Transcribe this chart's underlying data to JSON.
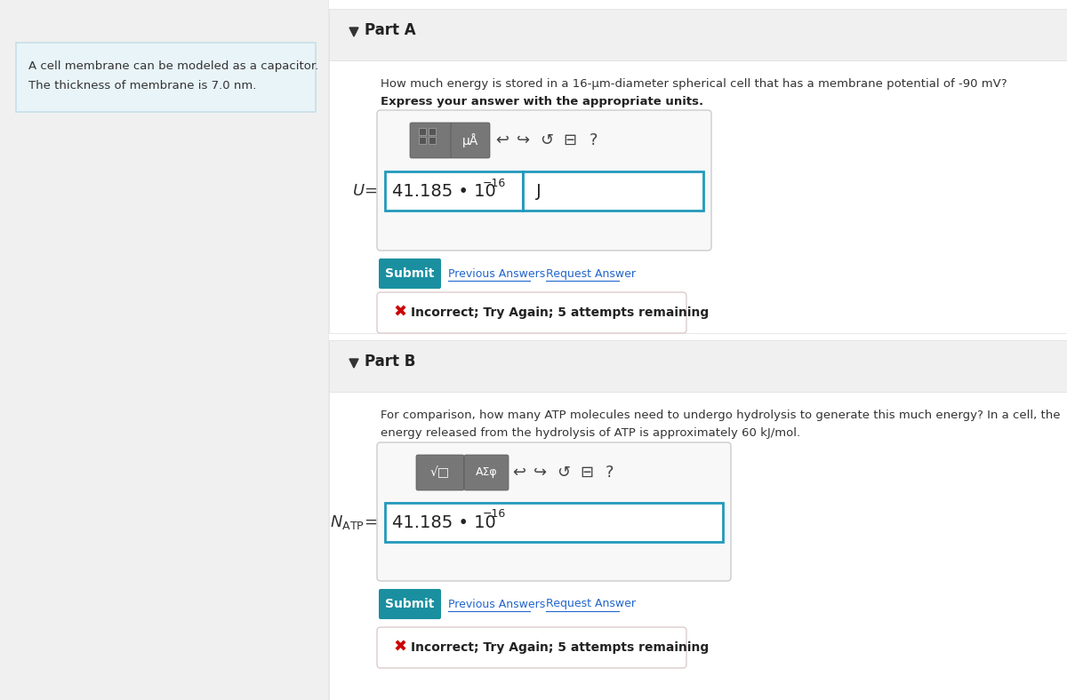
{
  "bg_color": "#f0f0f0",
  "left_panel_bg": "#e8f4f8",
  "left_panel_border": "#c8dfe8",
  "left_text_line1": "A cell membrane can be modeled as a capacitor.",
  "left_text_line2": "The thickness of membrane is 7.0 nm.",
  "right_bg": "#ffffff",
  "section_header_bg": "#f0f0f0",
  "part_a_label": "Part A",
  "part_a_question": "How much energy is stored in a 16-μm-diameter spherical cell that has a membrane potential of -90 mV?",
  "part_a_bold": "Express your answer with the appropriate units.",
  "part_b_label": "Part B",
  "part_b_q1": "For comparison, how many ATP molecules need to undergo hydrolysis to generate this much energy? In a cell, the",
  "part_b_q2": "energy released from the hydrolysis of ATP is approximately 60 kJ/mol.",
  "submit_bg": "#1a8fa0",
  "submit_text": "Submit",
  "link_color": "#2266cc",
  "prev_label": "Previous Answers",
  "req_label": "Request Answer",
  "incorrect_text": "Incorrect; Try Again; 5 attempts remaining",
  "error_red": "#cc0000",
  "toolbar_dark": "#666666",
  "toolbar_med": "#888888",
  "input_border_color": "#2299bb",
  "divider_color": "#cccccc",
  "section_divider": "#dddddd",
  "icon_color": "#444444"
}
